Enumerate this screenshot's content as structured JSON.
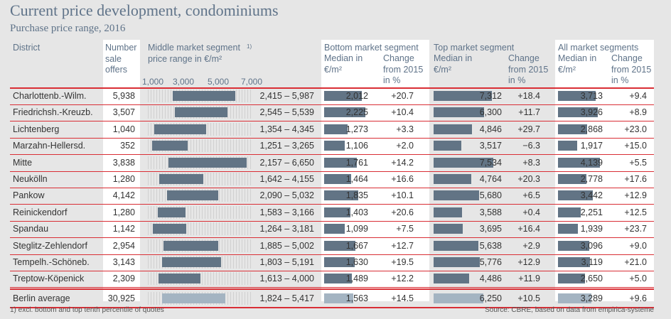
{
  "title": "Current price development, condominiums",
  "subtitle": "Purchase price range, 2016",
  "headers": {
    "district": "District",
    "number": "Number\nsale\noffers",
    "middle": "Middle market segment\nprice range in €/m²",
    "middle_sup": "1)",
    "bottom_title": "Bottom market segment",
    "top_title": "Top market segment",
    "all_title": "All market segments",
    "median": "Median in\n€/m²",
    "change": "Change\nfrom 2015\nin %"
  },
  "axis_ticks": [
    "1,000",
    "3,000",
    "5,000",
    "7,000"
  ],
  "colors": {
    "bar": "#627485",
    "bar_avg": "#a4b4c2",
    "rule": "#d92e35",
    "header_text": "#5f7389"
  },
  "footnote": "1) excl. bottom and top tenth percentile of quotes",
  "source": "Source: CBRE, based on data from empirica-systeme",
  "chart_data": {
    "type": "table",
    "columns": [
      "District",
      "Number sale offers",
      "Middle market segment price range in €/m²",
      "Bottom median €/m²",
      "Bottom change from 2015 in %",
      "Top median €/m²",
      "Top change from 2015 in %",
      "All median €/m²",
      "All change from 2015 in %"
    ],
    "range_axis": {
      "min": 1000,
      "max": 7000
    },
    "rows": [
      {
        "district": "Charlottenb.-Wilm.",
        "offers": "5,938",
        "range_text": "2,415 – 5,987",
        "range": [
          2415,
          5987
        ],
        "bottom_median": "2,012",
        "bottom_median_val": 2012,
        "bottom_change": "+20.7",
        "top_median": "7,312",
        "top_median_val": 7312,
        "top_change": "+18.4",
        "all_median": "3,713",
        "all_median_val": 3713,
        "all_change": "+9.4"
      },
      {
        "district": "Friedrichsh.-Kreuzb.",
        "offers": "3,507",
        "range_text": "2,545 – 5,539",
        "range": [
          2545,
          5539
        ],
        "bottom_median": "2,225",
        "bottom_median_val": 2225,
        "bottom_change": "+10.4",
        "top_median": "6,300",
        "top_median_val": 6300,
        "top_change": "+11.7",
        "all_median": "3,926",
        "all_median_val": 3926,
        "all_change": "+8.9"
      },
      {
        "district": "Lichtenberg",
        "offers": "1,040",
        "range_text": "1,354 – 4,345",
        "range": [
          1354,
          4345
        ],
        "bottom_median": "1,273",
        "bottom_median_val": 1273,
        "bottom_change": "+3.3",
        "top_median": "4,846",
        "top_median_val": 4846,
        "top_change": "+29.7",
        "all_median": "2,868",
        "all_median_val": 2868,
        "all_change": "+23.0"
      },
      {
        "district": "Marzahn-Hellersd.",
        "offers": "352",
        "range_text": "1,251 – 3,265",
        "range": [
          1251,
          3265
        ],
        "bottom_median": "1,106",
        "bottom_median_val": 1106,
        "bottom_change": "+2.0",
        "top_median": "3,517",
        "top_median_val": 3517,
        "top_change": "−6.3",
        "all_median": "1,917",
        "all_median_val": 1917,
        "all_change": "+15.0"
      },
      {
        "district": "Mitte",
        "offers": "3,838",
        "range_text": "2,157 – 6,650",
        "range": [
          2157,
          6650
        ],
        "bottom_median": "1,761",
        "bottom_median_val": 1761,
        "bottom_change": "+14.2",
        "top_median": "7,534",
        "top_median_val": 7534,
        "top_change": "+8.3",
        "all_median": "4,139",
        "all_median_val": 4139,
        "all_change": "+5.5"
      },
      {
        "district": "Neukölln",
        "offers": "1,280",
        "range_text": "1,642 – 4,155",
        "range": [
          1642,
          4155
        ],
        "bottom_median": "1,464",
        "bottom_median_val": 1464,
        "bottom_change": "+16.6",
        "top_median": "4,764",
        "top_median_val": 4764,
        "top_change": "+20.3",
        "all_median": "2,778",
        "all_median_val": 2778,
        "all_change": "+17.6"
      },
      {
        "district": "Pankow",
        "offers": "4,142",
        "range_text": "2,090 – 5,032",
        "range": [
          2090,
          5032
        ],
        "bottom_median": "1,835",
        "bottom_median_val": 1835,
        "bottom_change": "+10.1",
        "top_median": "5,680",
        "top_median_val": 5680,
        "top_change": "+6.5",
        "all_median": "3,442",
        "all_median_val": 3442,
        "all_change": "+12.9"
      },
      {
        "district": "Reinickendorf",
        "offers": "1,280",
        "range_text": "1,583 – 3,166",
        "range": [
          1583,
          3166
        ],
        "bottom_median": "1,403",
        "bottom_median_val": 1403,
        "bottom_change": "+20.6",
        "top_median": "3,588",
        "top_median_val": 3588,
        "top_change": "+0.4",
        "all_median": "2,251",
        "all_median_val": 2251,
        "all_change": "+12.5"
      },
      {
        "district": "Spandau",
        "offers": "1,142",
        "range_text": "1,264 – 3,181",
        "range": [
          1264,
          3181
        ],
        "bottom_median": "1,099",
        "bottom_median_val": 1099,
        "bottom_change": "+7.5",
        "top_median": "3,695",
        "top_median_val": 3695,
        "top_change": "+16.4",
        "all_median": "1,939",
        "all_median_val": 1939,
        "all_change": "+23.7"
      },
      {
        "district": "Steglitz-Zehlendorf",
        "offers": "2,954",
        "range_text": "1,885 – 5,002",
        "range": [
          1885,
          5002
        ],
        "bottom_median": "1,667",
        "bottom_median_val": 1667,
        "bottom_change": "+12.7",
        "top_median": "5,638",
        "top_median_val": 5638,
        "top_change": "+2.9",
        "all_median": "3,096",
        "all_median_val": 3096,
        "all_change": "+9.0"
      },
      {
        "district": "Tempelh.-Schöneb.",
        "offers": "3,143",
        "range_text": "1,803 – 5,191",
        "range": [
          1803,
          5191
        ],
        "bottom_median": "1,630",
        "bottom_median_val": 1630,
        "bottom_change": "+19.5",
        "top_median": "5,776",
        "top_median_val": 5776,
        "top_change": "+12.9",
        "all_median": "3,119",
        "all_median_val": 3119,
        "all_change": "+21.0"
      },
      {
        "district": "Treptow-Köpenick",
        "offers": "2,309",
        "range_text": "1,613 – 4,000",
        "range": [
          1613,
          4000
        ],
        "bottom_median": "1,489",
        "bottom_median_val": 1489,
        "bottom_change": "+12.2",
        "top_median": "4,486",
        "top_median_val": 4486,
        "top_change": "+11.9",
        "all_median": "2,650",
        "all_median_val": 2650,
        "all_change": "+5.0"
      }
    ],
    "average": {
      "district": "Berlin average",
      "offers": "30,925",
      "range_text": "1,824 – 5,417",
      "range": [
        1824,
        5417
      ],
      "bottom_median": "1,563",
      "bottom_median_val": 1563,
      "bottom_change": "+14.5",
      "top_median": "6,250",
      "top_median_val": 6250,
      "top_change": "+10.5",
      "all_median": "3,289",
      "all_median_val": 3289,
      "all_change": "+9.6"
    }
  }
}
